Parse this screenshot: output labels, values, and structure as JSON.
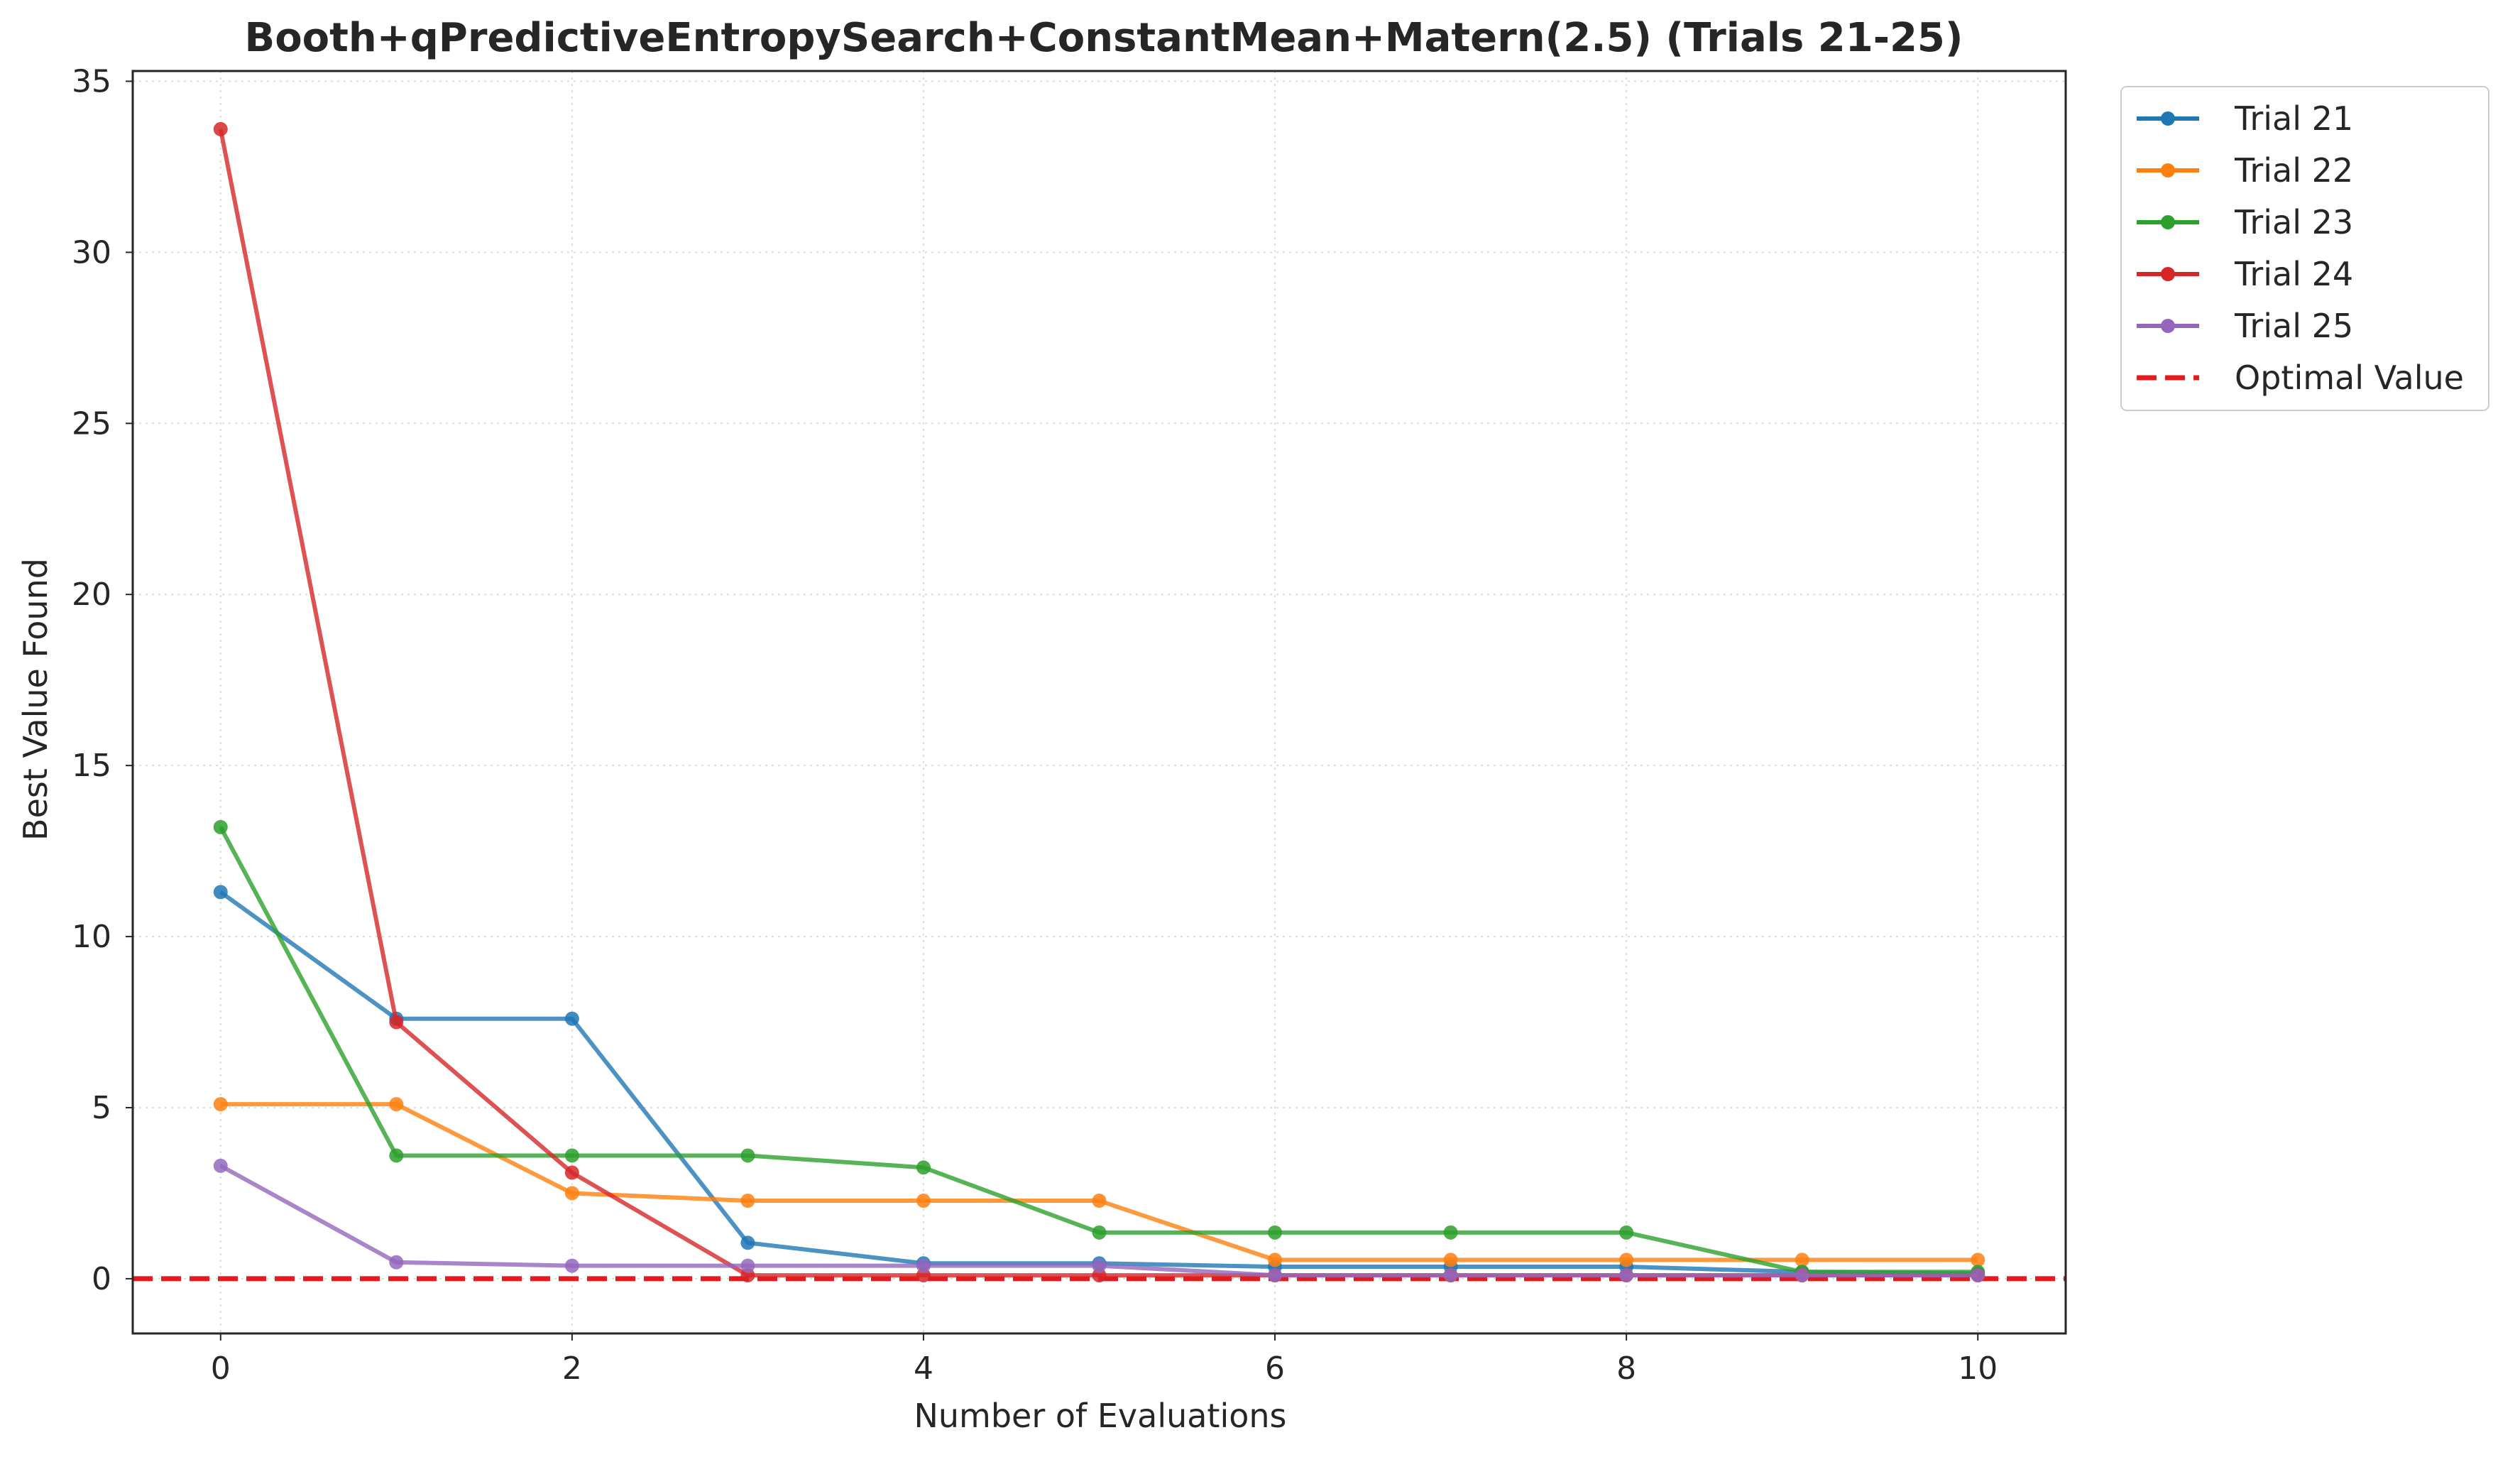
{
  "chart_data": {
    "type": "line",
    "title": "Booth+qPredictiveEntropySearch+ConstantMean+Matern(2.5) (Trials 21-25)",
    "xlabel": "Number of Evaluations",
    "ylabel": "Best Value Found",
    "xlim": [
      -0.5,
      10.5
    ],
    "ylim": [
      -1.6,
      35.3
    ],
    "xticks": [
      0,
      2,
      4,
      6,
      8,
      10
    ],
    "yticks": [
      0,
      5,
      10,
      15,
      20,
      25,
      30,
      35
    ],
    "grid": true,
    "legend_position": "outside top-right",
    "x": [
      0,
      1,
      2,
      3,
      4,
      5,
      6,
      7,
      8,
      9,
      10
    ],
    "series": [
      {
        "name": "Trial 21",
        "color": "#1f77b4",
        "values": [
          11.3,
          7.6,
          7.6,
          1.05,
          0.45,
          0.45,
          0.35,
          0.35,
          0.35,
          0.2,
          0.15
        ]
      },
      {
        "name": "Trial 22",
        "color": "#ff7f0e",
        "values": [
          5.1,
          5.1,
          2.5,
          2.28,
          2.28,
          2.28,
          0.55,
          0.55,
          0.55,
          0.55,
          0.55
        ]
      },
      {
        "name": "Trial 23",
        "color": "#2ca02c",
        "values": [
          13.2,
          3.6,
          3.6,
          3.6,
          3.25,
          1.35,
          1.35,
          1.35,
          1.35,
          0.2,
          0.2
        ]
      },
      {
        "name": "Trial 24",
        "color": "#d62728",
        "values": [
          33.6,
          7.5,
          3.1,
          0.1,
          0.1,
          0.1,
          0.1,
          0.1,
          0.1,
          0.1,
          0.1
        ]
      },
      {
        "name": "Trial 25",
        "color": "#9467bd",
        "values": [
          3.3,
          0.48,
          0.38,
          0.38,
          0.38,
          0.38,
          0.1,
          0.1,
          0.1,
          0.1,
          0.1
        ]
      }
    ],
    "reference_line": {
      "name": "Optimal Value",
      "value": 0,
      "color": "#e41a1c",
      "style": "dashed"
    }
  }
}
